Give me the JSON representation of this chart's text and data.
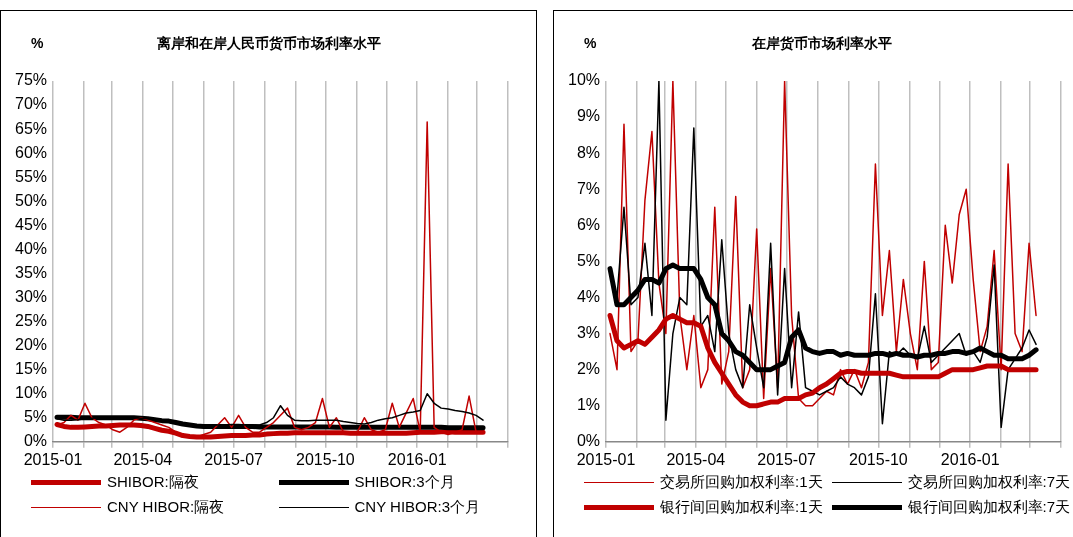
{
  "chart_data": [
    {
      "type": "line",
      "title": "离岸和在岸人民币货币市场利率水平",
      "ylabel": "%",
      "grid": "x",
      "legend": "bottom",
      "x": [
        "2015-01-05",
        "2015-01-12",
        "2015-01-19",
        "2015-01-26",
        "2015-02-02",
        "2015-02-09",
        "2015-02-16",
        "2015-02-23",
        "2015-03-02",
        "2015-03-09",
        "2015-03-16",
        "2015-03-23",
        "2015-03-30",
        "2015-04-06",
        "2015-04-13",
        "2015-04-20",
        "2015-04-27",
        "2015-05-04",
        "2015-05-11",
        "2015-05-18",
        "2015-05-25",
        "2015-06-01",
        "2015-06-08",
        "2015-06-15",
        "2015-06-22",
        "2015-06-29",
        "2015-07-06",
        "2015-07-13",
        "2015-07-20",
        "2015-07-27",
        "2015-08-03",
        "2015-08-10",
        "2015-08-17",
        "2015-08-24",
        "2015-08-31",
        "2015-09-07",
        "2015-09-14",
        "2015-09-21",
        "2015-09-28",
        "2015-10-05",
        "2015-10-12",
        "2015-10-19",
        "2015-10-26",
        "2015-11-02",
        "2015-11-09",
        "2015-11-16",
        "2015-11-23",
        "2015-11-30",
        "2015-12-07",
        "2015-12-14",
        "2015-12-21",
        "2015-12-28",
        "2016-01-04",
        "2016-01-11",
        "2016-01-18",
        "2016-01-25",
        "2016-02-01",
        "2016-02-08",
        "2016-02-15",
        "2016-02-22",
        "2016-02-29",
        "2016-03-07"
      ],
      "xlim": [
        "2015-01",
        "2016-04"
      ],
      "xticks": [
        "2015-01",
        {
          "value": "2015-02",
          "label": null
        },
        {
          "value": "2015-03",
          "label": null
        },
        "2015-04",
        {
          "value": "2015-05",
          "label": null
        },
        {
          "value": "2015-06",
          "label": null
        },
        "2015-07",
        {
          "value": "2015-08",
          "label": null
        },
        {
          "value": "2015-09",
          "label": null
        },
        "2015-10",
        {
          "value": "2015-11",
          "label": null
        },
        {
          "value": "2015-12",
          "label": null
        },
        "2016-01",
        {
          "value": "2016-02",
          "label": null
        },
        {
          "value": "2016-03",
          "label": null
        },
        {
          "value": "2016-04",
          "label": null
        }
      ],
      "ylim": [
        0,
        75
      ],
      "yticks": [
        {
          "value": 0,
          "label": "0%"
        },
        {
          "value": 5,
          "label": "5%"
        },
        {
          "value": 10,
          "label": "10%"
        },
        {
          "value": 15,
          "label": "15%"
        },
        {
          "value": 20,
          "label": "20%"
        },
        {
          "value": 25,
          "label": "25%"
        },
        {
          "value": 30,
          "label": "30%"
        },
        {
          "value": 35,
          "label": "35%"
        },
        {
          "value": 40,
          "label": "40%"
        },
        {
          "value": 45,
          "label": "45%"
        },
        {
          "value": 50,
          "label": "50%"
        },
        {
          "value": 55,
          "label": "55%"
        },
        {
          "value": 60,
          "label": "60%"
        },
        {
          "value": 65,
          "label": "65%"
        },
        {
          "value": 70,
          "label": "70%"
        },
        {
          "value": 75,
          "label": "75%"
        }
      ],
      "series": [
        {
          "name": "SHIBOR:隔夜",
          "color": "#c00000",
          "values": [
            3.6,
            3.2,
            3.0,
            3.0,
            3.1,
            3.2,
            3.3,
            3.3,
            3.4,
            3.5,
            3.5,
            3.5,
            3.4,
            3.2,
            2.8,
            2.4,
            2.2,
            1.8,
            1.3,
            1.1,
            1.0,
            1.0,
            1.0,
            1.1,
            1.2,
            1.3,
            1.3,
            1.3,
            1.4,
            1.4,
            1.6,
            1.7,
            1.8,
            1.8,
            1.9,
            1.9,
            1.9,
            1.9,
            1.9,
            1.9,
            1.9,
            1.9,
            1.8,
            1.8,
            1.8,
            1.8,
            1.8,
            1.8,
            1.8,
            1.8,
            1.8,
            1.9,
            2.0,
            2.0,
            2.0,
            2.1,
            2.1,
            2.0,
            2.0,
            2.0,
            2.0,
            2.0
          ]
        },
        {
          "name": "SHIBOR:3个月",
          "color": "#000000",
          "values": [
            5.1,
            5.1,
            5.1,
            5.0,
            5.0,
            5.0,
            5.0,
            5.0,
            5.0,
            5.0,
            5.0,
            5.0,
            4.9,
            4.8,
            4.6,
            4.4,
            4.3,
            4.0,
            3.7,
            3.5,
            3.3,
            3.2,
            3.2,
            3.2,
            3.2,
            3.2,
            3.2,
            3.2,
            3.2,
            3.1,
            3.1,
            3.1,
            3.1,
            3.1,
            3.1,
            3.1,
            3.1,
            3.1,
            3.1,
            3.1,
            3.0,
            3.0,
            3.0,
            3.0,
            3.0,
            3.0,
            3.0,
            3.0,
            3.0,
            3.0,
            3.0,
            3.0,
            3.0,
            3.0,
            3.0,
            3.0,
            2.9,
            2.9,
            2.9,
            2.9,
            2.9,
            2.9
          ]
        },
        {
          "name": "CNY HIBOR:隔夜",
          "color": "#c00000",
          "values": [
            3.5,
            4.0,
            5.5,
            4.5,
            8.0,
            5.0,
            4.0,
            3.5,
            2.5,
            2.0,
            3.0,
            4.5,
            5.0,
            4.5,
            4.0,
            3.5,
            3.0,
            2.0,
            1.5,
            1.0,
            1.0,
            1.5,
            2.0,
            3.5,
            5.0,
            3.0,
            5.5,
            3.0,
            2.0,
            2.0,
            3.0,
            4.0,
            5.5,
            7.0,
            3.0,
            2.5,
            3.0,
            4.0,
            9.0,
            3.0,
            5.0,
            2.0,
            2.0,
            2.0,
            5.0,
            2.5,
            2.0,
            2.5,
            8.0,
            3.0,
            6.0,
            9.0,
            2.0,
            66.5,
            3.0,
            2.0,
            1.5,
            2.0,
            2.5,
            9.5,
            2.0,
            2.0
          ]
        },
        {
          "name": "CNY HIBOR:3个月",
          "color": "#000000",
          "values": [
            4.8,
            4.5,
            4.5,
            4.6,
            4.8,
            4.9,
            5.0,
            5.0,
            5.0,
            5.0,
            5.0,
            5.0,
            4.9,
            4.8,
            4.6,
            4.4,
            4.2,
            4.0,
            3.8,
            3.6,
            3.5,
            3.4,
            3.4,
            3.5,
            3.5,
            3.6,
            3.6,
            3.5,
            3.5,
            3.5,
            4.0,
            5.0,
            7.5,
            5.5,
            4.5,
            4.4,
            4.4,
            4.5,
            4.5,
            4.5,
            4.5,
            4.2,
            4.0,
            3.8,
            3.7,
            4.0,
            4.5,
            4.8,
            5.0,
            5.5,
            6.0,
            6.2,
            6.5,
            10.0,
            8.0,
            7.0,
            6.8,
            6.5,
            6.3,
            6.0,
            5.5,
            4.5
          ]
        }
      ]
    },
    {
      "type": "line",
      "title": "在岸货币市场利率水平",
      "ylabel": "%",
      "grid": "x",
      "legend": "bottom",
      "x": [
        "2015-01-05",
        "2015-01-12",
        "2015-01-19",
        "2015-01-26",
        "2015-02-02",
        "2015-02-09",
        "2015-02-16",
        "2015-02-23",
        "2015-03-02",
        "2015-03-09",
        "2015-03-16",
        "2015-03-23",
        "2015-03-30",
        "2015-04-06",
        "2015-04-13",
        "2015-04-20",
        "2015-04-27",
        "2015-05-04",
        "2015-05-11",
        "2015-05-18",
        "2015-05-25",
        "2015-06-01",
        "2015-06-08",
        "2015-06-15",
        "2015-06-22",
        "2015-06-29",
        "2015-07-06",
        "2015-07-13",
        "2015-07-20",
        "2015-07-27",
        "2015-08-03",
        "2015-08-10",
        "2015-08-17",
        "2015-08-24",
        "2015-08-31",
        "2015-09-07",
        "2015-09-14",
        "2015-09-21",
        "2015-09-28",
        "2015-10-05",
        "2015-10-12",
        "2015-10-19",
        "2015-10-26",
        "2015-11-02",
        "2015-11-09",
        "2015-11-16",
        "2015-11-23",
        "2015-11-30",
        "2015-12-07",
        "2015-12-14",
        "2015-12-21",
        "2015-12-28",
        "2016-01-04",
        "2016-01-11",
        "2016-01-18",
        "2016-01-25",
        "2016-02-01",
        "2016-02-08",
        "2016-02-15",
        "2016-02-22",
        "2016-02-29",
        "2016-03-07"
      ],
      "xlim": [
        "2015-01",
        "2016-04"
      ],
      "xticks": [
        "2015-01",
        {
          "value": "2015-02",
          "label": null
        },
        {
          "value": "2015-03",
          "label": null
        },
        "2015-04",
        {
          "value": "2015-05",
          "label": null
        },
        {
          "value": "2015-06",
          "label": null
        },
        "2015-07",
        {
          "value": "2015-08",
          "label": null
        },
        {
          "value": "2015-09",
          "label": null
        },
        "2015-10",
        {
          "value": "2015-11",
          "label": null
        },
        {
          "value": "2015-12",
          "label": null
        },
        "2016-01",
        {
          "value": "2016-02",
          "label": null
        },
        {
          "value": "2016-03",
          "label": null
        },
        {
          "value": "2016-04",
          "label": null
        }
      ],
      "ylim": [
        0,
        10
      ],
      "yticks": [
        {
          "value": 0,
          "label": "0%"
        },
        {
          "value": 1,
          "label": "1%"
        },
        {
          "value": 2,
          "label": "2%"
        },
        {
          "value": 3,
          "label": "3%"
        },
        {
          "value": 4,
          "label": "4%"
        },
        {
          "value": 5,
          "label": "5%"
        },
        {
          "value": 6,
          "label": "6%"
        },
        {
          "value": 7,
          "label": "7%"
        },
        {
          "value": 8,
          "label": "8%"
        },
        {
          "value": 9,
          "label": "9%"
        },
        {
          "value": 10,
          "label": "10%"
        }
      ],
      "series": [
        {
          "name": "交易所回购加权利率:1天",
          "color": "#c00000",
          "values": [
            3.0,
            2.0,
            8.8,
            2.5,
            2.8,
            6.7,
            8.6,
            4.4,
            3.0,
            10.0,
            3.5,
            2.0,
            3.5,
            1.5,
            2.0,
            6.5,
            1.6,
            2.5,
            6.8,
            1.5,
            2.0,
            5.9,
            1.2,
            4.8,
            1.5,
            10.0,
            3.5,
            1.2,
            1.0,
            1.0,
            1.2,
            1.4,
            1.3,
            2.0,
            1.6,
            2.0,
            1.5,
            2.2,
            7.7,
            3.5,
            5.3,
            2.5,
            4.5,
            3.0,
            2.0,
            5.0,
            2.0,
            2.2,
            6.0,
            4.4,
            6.3,
            7.0,
            4.5,
            2.5,
            3.2,
            5.3,
            2.0,
            7.7,
            3.0,
            2.5,
            5.5,
            3.5
          ]
        },
        {
          "name": "交易所回购加权利率:7天",
          "color": "#000000",
          "values": [
            4.8,
            4.0,
            6.5,
            3.8,
            4.0,
            5.5,
            3.5,
            10.0,
            0.6,
            3.0,
            4.0,
            3.8,
            8.7,
            3.2,
            3.5,
            2.5,
            5.6,
            3.0,
            2.0,
            1.5,
            3.8,
            2.6,
            1.5,
            5.5,
            1.3,
            4.8,
            1.5,
            3.6,
            1.5,
            1.4,
            1.3,
            1.4,
            1.5,
            1.8,
            1.6,
            1.5,
            1.3,
            1.8,
            4.1,
            0.5,
            2.5,
            2.4,
            2.6,
            2.4,
            2.3,
            3.2,
            2.2,
            2.4,
            2.6,
            2.8,
            3.0,
            2.4,
            2.5,
            2.2,
            2.9,
            4.9,
            0.4,
            2.0,
            2.3,
            2.6,
            3.1,
            2.7
          ]
        },
        {
          "name": "银行间回购加权利率:1天",
          "color": "#c00000",
          "values": [
            3.5,
            2.8,
            2.6,
            2.7,
            2.8,
            2.7,
            2.9,
            3.1,
            3.4,
            3.5,
            3.4,
            3.3,
            3.3,
            3.2,
            2.6,
            2.2,
            1.9,
            1.6,
            1.3,
            1.1,
            1.0,
            1.0,
            1.05,
            1.1,
            1.1,
            1.2,
            1.2,
            1.2,
            1.3,
            1.35,
            1.5,
            1.6,
            1.75,
            1.9,
            1.95,
            1.95,
            1.9,
            1.9,
            1.9,
            1.9,
            1.9,
            1.85,
            1.8,
            1.8,
            1.8,
            1.8,
            1.8,
            1.8,
            1.9,
            2.0,
            2.0,
            2.0,
            2.0,
            2.05,
            2.1,
            2.1,
            2.1,
            2.0,
            2.0,
            2.0,
            2.0,
            2.0
          ]
        },
        {
          "name": "银行间回购加权利率:7天",
          "color": "#000000",
          "values": [
            4.8,
            3.8,
            3.8,
            4.0,
            4.2,
            4.5,
            4.5,
            4.4,
            4.8,
            4.9,
            4.8,
            4.8,
            4.8,
            4.5,
            4.0,
            3.8,
            3.0,
            2.8,
            2.5,
            2.4,
            2.2,
            2.0,
            2.0,
            2.0,
            2.1,
            2.2,
            2.9,
            3.1,
            2.6,
            2.5,
            2.45,
            2.5,
            2.5,
            2.4,
            2.45,
            2.4,
            2.4,
            2.4,
            2.45,
            2.45,
            2.4,
            2.45,
            2.4,
            2.4,
            2.35,
            2.4,
            2.4,
            2.45,
            2.45,
            2.5,
            2.5,
            2.45,
            2.5,
            2.6,
            2.5,
            2.4,
            2.4,
            2.3,
            2.3,
            2.3,
            2.4,
            2.55
          ]
        }
      ]
    }
  ]
}
